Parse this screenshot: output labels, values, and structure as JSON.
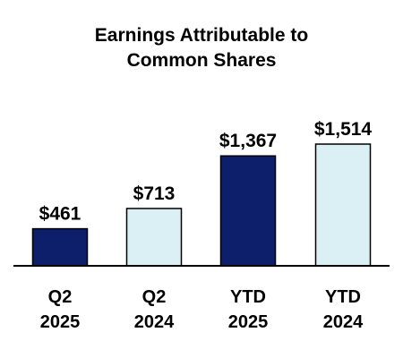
{
  "chart_data": {
    "type": "bar",
    "title_lines": [
      "Earnings Attributable to",
      "Common Shares"
    ],
    "categories": [
      [
        "Q2",
        "2025"
      ],
      [
        "Q2",
        "2024"
      ],
      [
        "YTD",
        "2025"
      ],
      [
        "YTD",
        "2024"
      ]
    ],
    "values": [
      461,
      713,
      1367,
      1514
    ],
    "value_labels": [
      "$461",
      "$713",
      "$1,367",
      "$1,514"
    ],
    "colors": [
      "#0d1f6b",
      "#dbf0f4",
      "#0d1f6b",
      "#dbf0f4"
    ],
    "bar_border_color": "#000000",
    "ylim": [
      0,
      1514
    ],
    "grid": false,
    "legend": "none"
  }
}
